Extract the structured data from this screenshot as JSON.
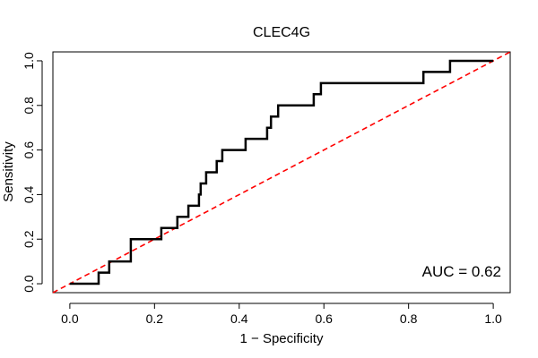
{
  "chart_data": {
    "type": "line",
    "title": "CLEC4G",
    "xlabel": "1 − Specificity",
    "ylabel": "Sensitivity",
    "xlim": [
      -0.04,
      1.04
    ],
    "ylim": [
      -0.04,
      1.04
    ],
    "xticks": [
      0.0,
      0.2,
      0.4,
      0.6,
      0.8,
      1.0
    ],
    "xtick_labels": [
      "0.0",
      "0.2",
      "0.4",
      "0.6",
      "0.8",
      "1.0"
    ],
    "yticks": [
      0.0,
      0.2,
      0.4,
      0.6,
      0.8,
      1.0
    ],
    "ytick_labels": [
      "0.0",
      "0.2",
      "0.4",
      "0.6",
      "0.8",
      "1.0"
    ],
    "grid": false,
    "annotation": "AUC = 0.62",
    "series": [
      {
        "style": "step",
        "color": "#000000",
        "x": [
          0.0,
          0.068,
          0.068,
          0.093,
          0.093,
          0.144,
          0.144,
          0.216,
          0.216,
          0.254,
          0.254,
          0.28,
          0.28,
          0.305,
          0.305,
          0.309,
          0.309,
          0.322,
          0.322,
          0.347,
          0.347,
          0.36,
          0.36,
          0.415,
          0.415,
          0.466,
          0.466,
          0.475,
          0.475,
          0.492,
          0.492,
          0.576,
          0.576,
          0.593,
          0.593,
          0.835,
          0.835,
          0.898,
          0.898,
          1.0
        ],
        "y": [
          0.0,
          0.0,
          0.05,
          0.05,
          0.1,
          0.1,
          0.2,
          0.2,
          0.25,
          0.25,
          0.3,
          0.3,
          0.35,
          0.35,
          0.4,
          0.4,
          0.45,
          0.45,
          0.5,
          0.5,
          0.55,
          0.55,
          0.6,
          0.6,
          0.65,
          0.65,
          0.7,
          0.7,
          0.75,
          0.75,
          0.8,
          0.8,
          0.85,
          0.85,
          0.9,
          0.9,
          0.95,
          0.95,
          1.0,
          1.0
        ]
      },
      {
        "style": "dashed",
        "color": "#ff0000",
        "x": [
          -0.04,
          1.04
        ],
        "y": [
          -0.04,
          1.04
        ]
      }
    ]
  }
}
